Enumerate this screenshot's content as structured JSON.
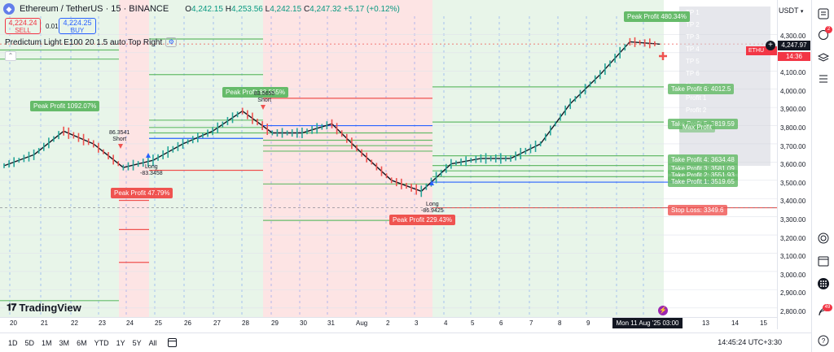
{
  "header": {
    "symbol_title": "Ethereum / TetherUS · 15 · BINANCE",
    "ohlc": {
      "open_label": "O",
      "open": "4,242.15",
      "high_label": "H",
      "high": "4,253.56",
      "low_label": "L",
      "low": "4,242.15",
      "close_label": "C",
      "close": "4,247.32",
      "change": "+5.17 (+0.12%)"
    },
    "sell_price": "4,224.24",
    "sell_label": "SELL",
    "buy_price": "4,224.25",
    "buy_label": "BUY",
    "spread": "0.01"
  },
  "indicator": {
    "label": "Predictum Light E100 20 1.5 auto Top Right",
    "icon": "settings-icon"
  },
  "price_axis": {
    "currency": "USDT",
    "ticks": [
      "4,300.00",
      "4,200.00",
      "4,100.00",
      "4,000.00",
      "3,900.00",
      "3,800.00",
      "3,700.00",
      "3,600.00",
      "3,500.00",
      "3,400.00",
      "3,300.00",
      "3,200.00",
      "3,100.00",
      "3,000.00",
      "2,900.00",
      "2,800.00"
    ],
    "current_price": "4,247.97",
    "countdown": "14:36",
    "symbol_tag": "ETHU"
  },
  "time_axis": {
    "ticks": [
      "20",
      "21",
      "22",
      "23",
      "24",
      "25",
      "26",
      "27",
      "28",
      "29",
      "30",
      "31",
      "Aug",
      "2",
      "3",
      "4",
      "5",
      "6",
      "7",
      "8",
      "9",
      "11",
      "12",
      "13",
      "14",
      "15"
    ],
    "crosshair_label": "Mon 11 Aug '25  03:00"
  },
  "take_profits": [
    {
      "label": "Take Profit 6: 4012.5"
    },
    {
      "label": "Take Profit 5: 3819.59"
    },
    {
      "label": "Max Profit"
    },
    {
      "label": "Take Profit 4: 3634.48"
    },
    {
      "label": "Take Profit 3: 3581.09"
    },
    {
      "label": "Take Profit 2: 3551.93"
    },
    {
      "label": "Take Profit 1: 3519.65"
    }
  ],
  "stop_loss": {
    "label": "Stop Loss: 3349.6"
  },
  "peak_labels": [
    {
      "text": "Peak Profit 1092.07%",
      "kind": "green"
    },
    {
      "text": "Peak Profit 47.79%",
      "kind": "red"
    },
    {
      "text": "Peak Profit 83.565%",
      "kind": "green"
    },
    {
      "text": "Peak Profit 229.43%",
      "kind": "red"
    },
    {
      "text": "Peak Profit 480.34%",
      "kind": "green"
    }
  ],
  "signals": [
    {
      "line1": "86.3541",
      "line2": "Short"
    },
    {
      "line1": "Long",
      "line2": "-83.3458"
    },
    {
      "line1": "83.5655",
      "line2": "Short"
    },
    {
      "line1": "Long",
      "line2": "-86.9425"
    }
  ],
  "stats_panel": [
    "TP 1",
    "TP 2",
    "TP 3",
    "TP 4",
    "TP 5",
    "TP 6",
    "Max Profit",
    "Profit 1",
    "Profit 2"
  ],
  "logo": {
    "text": "TradingView"
  },
  "bottom_toolbar": {
    "ranges": [
      "1D",
      "5D",
      "1M",
      "3M",
      "6M",
      "YTD",
      "1Y",
      "5Y",
      "All"
    ],
    "clock": "14:45:24 UTC+3:30"
  },
  "sidebar": {
    "notification_count": "2",
    "alerts_count": "49"
  },
  "chart_data": {
    "type": "line",
    "title": "Ethereum / TetherUS · 15 · BINANCE",
    "xlabel": "",
    "ylabel": "",
    "ylim": [
      2750,
      4400
    ],
    "x": [
      "Jul 20",
      "Jul 21",
      "Jul 22",
      "Jul 23",
      "Jul 24",
      "Jul 25",
      "Jul 26",
      "Jul 27",
      "Jul 28",
      "Jul 29",
      "Jul 30",
      "Jul 31",
      "Aug 1",
      "Aug 2",
      "Aug 3",
      "Aug 4",
      "Aug 5",
      "Aug 6",
      "Aug 7",
      "Aug 8",
      "Aug 9",
      "Aug 10",
      "Aug 11"
    ],
    "series": [
      {
        "values": [
          3580,
          3640,
          3770,
          3700,
          3570,
          3610,
          3700,
          3770,
          3880,
          3760,
          3760,
          3810,
          3650,
          3500,
          3440,
          3590,
          3620,
          3620,
          3700,
          3920,
          4080,
          4260,
          4247
        ]
      }
    ],
    "grid": true,
    "levels": {
      "take_profit_6": 4012.5,
      "take_profit_5": 3819.59,
      "take_profit_4": 3634.48,
      "take_profit_3": 3581.09,
      "take_profit_2": 3551.93,
      "take_profit_1": 3519.65,
      "stop_loss": 3349.6
    }
  }
}
